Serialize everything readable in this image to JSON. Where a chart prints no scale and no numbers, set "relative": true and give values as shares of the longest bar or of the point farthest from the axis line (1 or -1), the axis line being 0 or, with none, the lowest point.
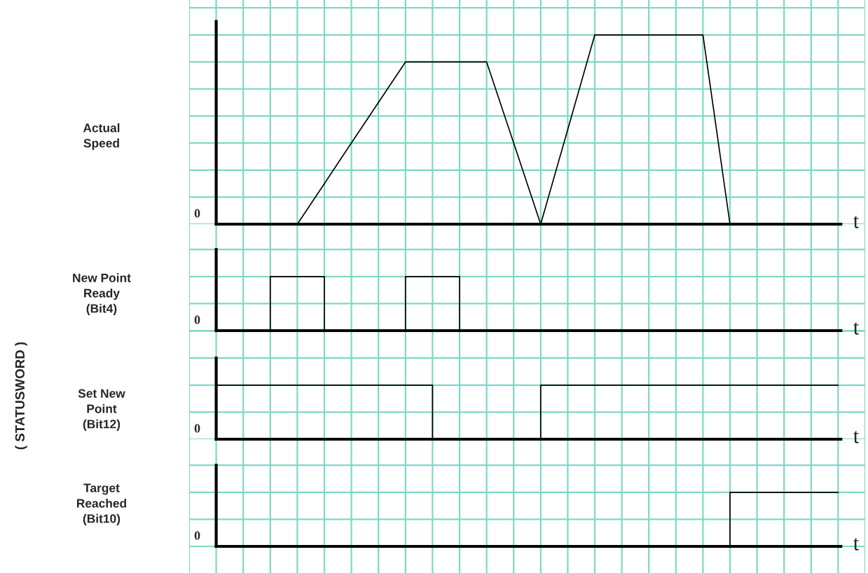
{
  "chart_data": [
    {
      "type": "line",
      "relative": true,
      "ylabel": "Actual\nSpeed",
      "xlabel": "t",
      "annotations": [
        "0"
      ],
      "grid": true,
      "categories": [
        null,
        null,
        null,
        null,
        null,
        null,
        null,
        null,
        null,
        null,
        null,
        null,
        null,
        null,
        null,
        null,
        null,
        null,
        null,
        null,
        null,
        null,
        null,
        null
      ],
      "series": [
        {
          "color": "#000000",
          "values": [
            0,
            0,
            0,
            0,
            0.214,
            0.429,
            0.643,
            0.857,
            0.857,
            0.857,
            0.857,
            0.429,
            0,
            0.5,
            1,
            1,
            1,
            1,
            1,
            0,
            null,
            null,
            null,
            null
          ]
        }
      ]
    },
    {
      "type": "step",
      "relative": true,
      "ylabel": "New Point\nReady\n(Bit4)",
      "xlabel": "t",
      "annotations": [
        "0"
      ],
      "grid": true,
      "categories": [
        null,
        null,
        null,
        null,
        null,
        null,
        null,
        null,
        null,
        null,
        null,
        null,
        null,
        null,
        null,
        null,
        null,
        null,
        null,
        null,
        null,
        null,
        null,
        null
      ],
      "series": [
        {
          "color": "#000000",
          "values": [
            0,
            0,
            1,
            1,
            0,
            0,
            0,
            1,
            1,
            0,
            0,
            0,
            0,
            0,
            0,
            0,
            0,
            0,
            0,
            0,
            0,
            0,
            0,
            0
          ]
        }
      ]
    },
    {
      "type": "step",
      "relative": true,
      "ylabel": "Set New\nPoint\n(Bit12)",
      "xlabel": "t",
      "annotations": [
        "0",
        "( STATUSWORD )"
      ],
      "grid": true,
      "categories": [
        null,
        null,
        null,
        null,
        null,
        null,
        null,
        null,
        null,
        null,
        null,
        null,
        null,
        null,
        null,
        null,
        null,
        null,
        null,
        null,
        null,
        null,
        null,
        null
      ],
      "series": [
        {
          "color": "#000000",
          "values": [
            1,
            1,
            1,
            1,
            1,
            1,
            1,
            1,
            0,
            0,
            0,
            0,
            1,
            1,
            1,
            1,
            1,
            1,
            1,
            1,
            1,
            1,
            1,
            1
          ]
        }
      ]
    },
    {
      "type": "step",
      "relative": true,
      "ylabel": "Target\nReached\n(Bit10)",
      "xlabel": "t",
      "annotations": [
        "0"
      ],
      "grid": true,
      "categories": [
        null,
        null,
        null,
        null,
        null,
        null,
        null,
        null,
        null,
        null,
        null,
        null,
        null,
        null,
        null,
        null,
        null,
        null,
        null,
        null,
        null,
        null,
        null,
        null
      ],
      "series": [
        {
          "color": "#000000",
          "values": [
            0,
            0,
            0,
            0,
            0,
            0,
            0,
            0,
            0,
            0,
            0,
            0,
            0,
            0,
            0,
            0,
            0,
            0,
            0,
            1,
            1,
            1,
            1,
            1
          ]
        }
      ]
    }
  ]
}
